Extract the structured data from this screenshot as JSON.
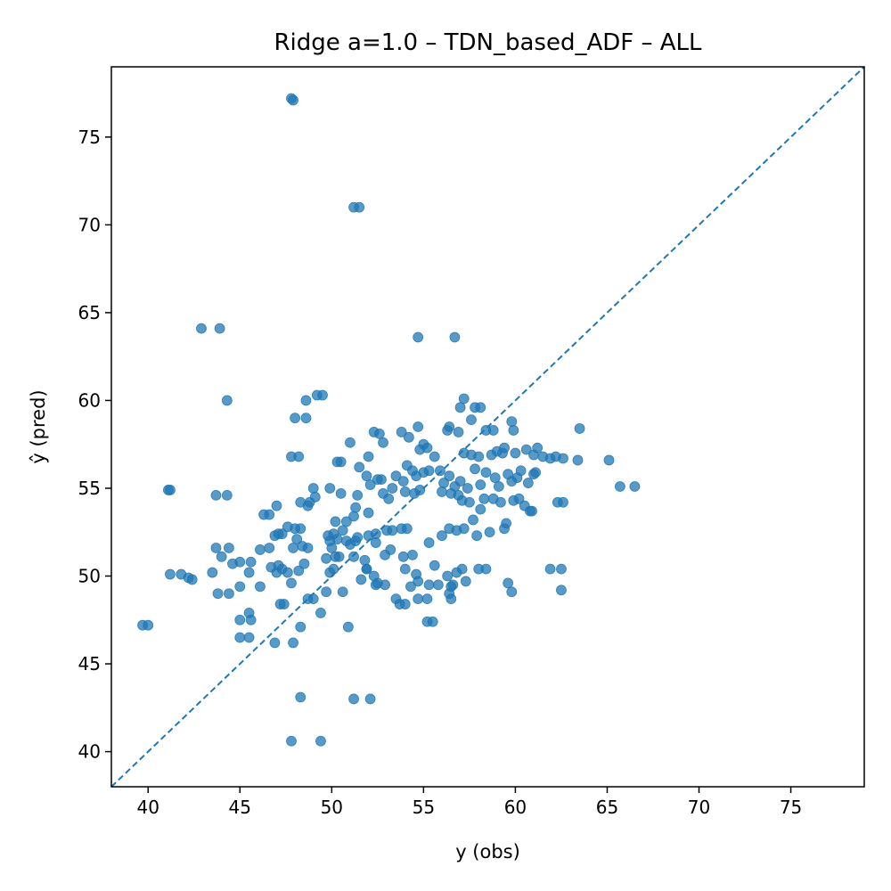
{
  "chart_data": {
    "type": "scatter",
    "title": "Ridge a=1.0 – TDN_based_ADF – ALL",
    "xlabel": "y (obs)",
    "ylabel": "ŷ (pred)",
    "xlim": [
      38,
      79
    ],
    "ylim": [
      38,
      79
    ],
    "xticks": [
      40,
      45,
      50,
      55,
      60,
      65,
      70,
      75
    ],
    "yticks": [
      40,
      45,
      50,
      55,
      60,
      65,
      70,
      75
    ],
    "grid": false,
    "point_color": "#1f77b4",
    "reference_line": {
      "from": [
        38,
        38
      ],
      "to": [
        79,
        79
      ],
      "style": "dashed",
      "color": "#1f77b4"
    },
    "points": [
      [
        47.8,
        77.2
      ],
      [
        47.9,
        77.1
      ],
      [
        51.2,
        71.0
      ],
      [
        51.5,
        71.0
      ],
      [
        42.9,
        64.1
      ],
      [
        43.9,
        64.1
      ],
      [
        54.7,
        63.6
      ],
      [
        56.7,
        63.6
      ],
      [
        44.3,
        60.0
      ],
      [
        48.6,
        60.0
      ],
      [
        49.2,
        60.3
      ],
      [
        49.5,
        60.3
      ],
      [
        48.0,
        59.0
      ],
      [
        48.6,
        59.0
      ],
      [
        47.8,
        56.8
      ],
      [
        48.2,
        56.8
      ],
      [
        41.1,
        54.9
      ],
      [
        41.2,
        54.9
      ],
      [
        43.7,
        54.6
      ],
      [
        44.3,
        54.6
      ],
      [
        49.0,
        55.0
      ],
      [
        49.9,
        55.0
      ],
      [
        50.5,
        54.7
      ],
      [
        49.1,
        54.5
      ],
      [
        48.3,
        54.2
      ],
      [
        48.8,
        54.2
      ],
      [
        48.7,
        54.0
      ],
      [
        47.0,
        54.0
      ],
      [
        46.6,
        53.5
      ],
      [
        46.3,
        53.5
      ],
      [
        50.2,
        53.1
      ],
      [
        50.8,
        53.1
      ],
      [
        51.2,
        53.4
      ],
      [
        50.6,
        52.6
      ],
      [
        47.1,
        52.4
      ],
      [
        47.3,
        52.4
      ],
      [
        46.9,
        52.3
      ],
      [
        47.6,
        52.8
      ],
      [
        48.0,
        52.7
      ],
      [
        48.3,
        52.7
      ],
      [
        48.1,
        52.1
      ],
      [
        47.9,
        51.6
      ],
      [
        48.4,
        51.7
      ],
      [
        48.7,
        51.6
      ],
      [
        49.8,
        52.3
      ],
      [
        50.1,
        52.4
      ],
      [
        49.9,
        52.0
      ],
      [
        50.3,
        52.1
      ],
      [
        50.0,
        51.6
      ],
      [
        50.8,
        52.0
      ],
      [
        51.3,
        52.0
      ],
      [
        51.4,
        52.2
      ],
      [
        51.0,
        51.8
      ],
      [
        43.7,
        51.6
      ],
      [
        44.4,
        51.6
      ],
      [
        44.0,
        51.1
      ],
      [
        46.6,
        51.6
      ],
      [
        46.1,
        51.5
      ],
      [
        45.0,
        50.8
      ],
      [
        45.6,
        50.8
      ],
      [
        44.6,
        50.7
      ],
      [
        43.5,
        50.2
      ],
      [
        41.2,
        50.1
      ],
      [
        41.8,
        50.1
      ],
      [
        42.2,
        49.9
      ],
      [
        42.4,
        49.8
      ],
      [
        45.5,
        50.2
      ],
      [
        46.7,
        50.5
      ],
      [
        47.1,
        50.6
      ],
      [
        47.3,
        50.4
      ],
      [
        47.6,
        50.2
      ],
      [
        47.0,
        50.2
      ],
      [
        48.2,
        50.3
      ],
      [
        48.5,
        50.7
      ],
      [
        49.7,
        51.0
      ],
      [
        50.2,
        51.1
      ],
      [
        50.4,
        51.1
      ],
      [
        50.1,
        50.4
      ],
      [
        49.9,
        50.2
      ],
      [
        51.2,
        51.1
      ],
      [
        51.8,
        50.9
      ],
      [
        51.9,
        50.4
      ],
      [
        43.8,
        49.0
      ],
      [
        44.4,
        49.0
      ],
      [
        45.0,
        49.4
      ],
      [
        46.1,
        49.4
      ],
      [
        47.2,
        48.4
      ],
      [
        47.4,
        48.4
      ],
      [
        47.8,
        49.6
      ],
      [
        48.7,
        48.7
      ],
      [
        49.0,
        48.7
      ],
      [
        49.7,
        49.1
      ],
      [
        50.6,
        49.1
      ],
      [
        45.0,
        47.5
      ],
      [
        45.6,
        47.5
      ],
      [
        45.5,
        47.9
      ],
      [
        49.4,
        47.9
      ],
      [
        48.3,
        47.1
      ],
      [
        50.9,
        47.1
      ],
      [
        45.0,
        46.5
      ],
      [
        45.5,
        46.5
      ],
      [
        46.9,
        46.2
      ],
      [
        47.9,
        46.2
      ],
      [
        39.7,
        47.2
      ],
      [
        40.0,
        47.2
      ],
      [
        48.3,
        43.1
      ],
      [
        51.2,
        43.0
      ],
      [
        52.1,
        43.0
      ],
      [
        47.8,
        40.6
      ],
      [
        49.4,
        40.6
      ],
      [
        51.0,
        57.6
      ],
      [
        52.0,
        56.8
      ],
      [
        51.5,
        56.2
      ],
      [
        52.3,
        58.2
      ],
      [
        52.6,
        58.1
      ],
      [
        52.8,
        57.6
      ],
      [
        53.8,
        58.2
      ],
      [
        54.7,
        58.5
      ],
      [
        54.2,
        57.9
      ],
      [
        50.3,
        56.5
      ],
      [
        50.5,
        56.5
      ],
      [
        51.9,
        55.7
      ],
      [
        51.4,
        54.6
      ],
      [
        51.3,
        53.9
      ],
      [
        52.0,
        53.6
      ],
      [
        52.5,
        55.5
      ],
      [
        52.7,
        55.5
      ],
      [
        52.1,
        55.2
      ],
      [
        52.8,
        54.7
      ],
      [
        53.1,
        54.4
      ],
      [
        53.5,
        55.7
      ],
      [
        53.3,
        55.0
      ],
      [
        53.9,
        55.4
      ],
      [
        54.1,
        56.3
      ],
      [
        54.4,
        56.0
      ],
      [
        54.6,
        55.7
      ],
      [
        54.0,
        54.8
      ],
      [
        54.5,
        54.7
      ],
      [
        54.8,
        54.9
      ],
      [
        55.0,
        55.9
      ],
      [
        55.3,
        56.0
      ],
      [
        54.8,
        57.2
      ],
      [
        55.0,
        57.5
      ],
      [
        55.2,
        57.3
      ],
      [
        55.6,
        56.8
      ],
      [
        55.9,
        56.0
      ],
      [
        56.1,
        55.3
      ],
      [
        56.0,
        54.8
      ],
      [
        56.4,
        55.7
      ],
      [
        56.7,
        55.1
      ],
      [
        56.5,
        54.7
      ],
      [
        57.0,
        55.4
      ],
      [
        56.9,
        54.6
      ],
      [
        57.1,
        54.3
      ],
      [
        57.4,
        55.0
      ],
      [
        57.5,
        54.2
      ],
      [
        58.1,
        55.2
      ],
      [
        57.8,
        56.1
      ],
      [
        58.3,
        54.4
      ],
      [
        57.2,
        57.0
      ],
      [
        57.6,
        56.9
      ],
      [
        58.0,
        56.8
      ],
      [
        58.7,
        56.9
      ],
      [
        59.0,
        57.1
      ],
      [
        58.4,
        55.9
      ],
      [
        58.9,
        55.6
      ],
      [
        59.1,
        55.1
      ],
      [
        59.6,
        55.8
      ],
      [
        59.8,
        55.4
      ],
      [
        60.1,
        55.6
      ],
      [
        60.3,
        56.0
      ],
      [
        60.7,
        55.3
      ],
      [
        59.4,
        57.3
      ],
      [
        60.0,
        57.0
      ],
      [
        60.6,
        57.2
      ],
      [
        61.0,
        56.9
      ],
      [
        61.2,
        57.3
      ],
      [
        61.5,
        56.8
      ],
      [
        61.9,
        56.7
      ],
      [
        62.2,
        56.8
      ],
      [
        62.6,
        56.7
      ],
      [
        61.1,
        55.9
      ],
      [
        61.0,
        55.8
      ],
      [
        58.8,
        58.3
      ],
      [
        58.4,
        58.3
      ],
      [
        59.8,
        58.8
      ],
      [
        59.9,
        58.3
      ],
      [
        59.3,
        57.0
      ],
      [
        58.8,
        54.4
      ],
      [
        59.2,
        54.2
      ],
      [
        59.5,
        53.0
      ],
      [
        59.4,
        52.7
      ],
      [
        59.9,
        54.3
      ],
      [
        60.2,
        54.4
      ],
      [
        60.5,
        54.0
      ],
      [
        60.8,
        53.7
      ],
      [
        60.9,
        53.7
      ],
      [
        62.3,
        54.2
      ],
      [
        62.6,
        54.2
      ],
      [
        63.4,
        56.6
      ],
      [
        63.5,
        58.4
      ],
      [
        65.1,
        56.6
      ],
      [
        65.7,
        55.1
      ],
      [
        66.5,
        55.1
      ],
      [
        56.3,
        58.3
      ],
      [
        56.4,
        58.5
      ],
      [
        56.9,
        58.2
      ],
      [
        57.6,
        58.9
      ],
      [
        57.8,
        59.6
      ],
      [
        58.1,
        59.6
      ],
      [
        57.2,
        60.1
      ],
      [
        57.0,
        59.6
      ],
      [
        53.0,
        52.6
      ],
      [
        53.3,
        52.6
      ],
      [
        53.8,
        52.7
      ],
      [
        54.1,
        52.7
      ],
      [
        52.4,
        52.4
      ],
      [
        52.0,
        52.3
      ],
      [
        52.4,
        51.9
      ],
      [
        52.9,
        51.2
      ],
      [
        53.2,
        51.5
      ],
      [
        53.9,
        51.1
      ],
      [
        54.4,
        51.2
      ],
      [
        55.3,
        51.9
      ],
      [
        56.0,
        52.3
      ],
      [
        56.4,
        52.7
      ],
      [
        56.8,
        52.6
      ],
      [
        57.2,
        52.7
      ],
      [
        57.9,
        52.3
      ],
      [
        57.7,
        53.2
      ],
      [
        58.1,
        53.8
      ],
      [
        58.6,
        52.5
      ],
      [
        54.0,
        50.4
      ],
      [
        54.6,
        50.1
      ],
      [
        55.6,
        50.6
      ],
      [
        56.3,
        50.0
      ],
      [
        56.6,
        49.5
      ],
      [
        57.1,
        50.4
      ],
      [
        56.8,
        50.2
      ],
      [
        57.3,
        49.7
      ],
      [
        56.5,
        49.4
      ],
      [
        56.4,
        49.0
      ],
      [
        55.3,
        49.5
      ],
      [
        55.8,
        49.5
      ],
      [
        54.7,
        49.7
      ],
      [
        54.3,
        49.4
      ],
      [
        52.9,
        49.5
      ],
      [
        52.4,
        49.5
      ],
      [
        52.5,
        49.6
      ],
      [
        51.9,
        50.4
      ],
      [
        51.6,
        49.8
      ],
      [
        53.7,
        48.4
      ],
      [
        54.0,
        48.4
      ],
      [
        53.5,
        48.7
      ],
      [
        54.7,
        48.7
      ],
      [
        55.2,
        48.7
      ],
      [
        56.5,
        48.7
      ],
      [
        55.2,
        47.4
      ],
      [
        55.5,
        47.4
      ],
      [
        58.0,
        50.4
      ],
      [
        58.4,
        50.4
      ],
      [
        59.6,
        49.6
      ],
      [
        59.8,
        49.1
      ],
      [
        61.9,
        50.4
      ],
      [
        62.5,
        50.4
      ],
      [
        62.5,
        49.2
      ],
      [
        52.3,
        50.0
      ]
    ]
  }
}
